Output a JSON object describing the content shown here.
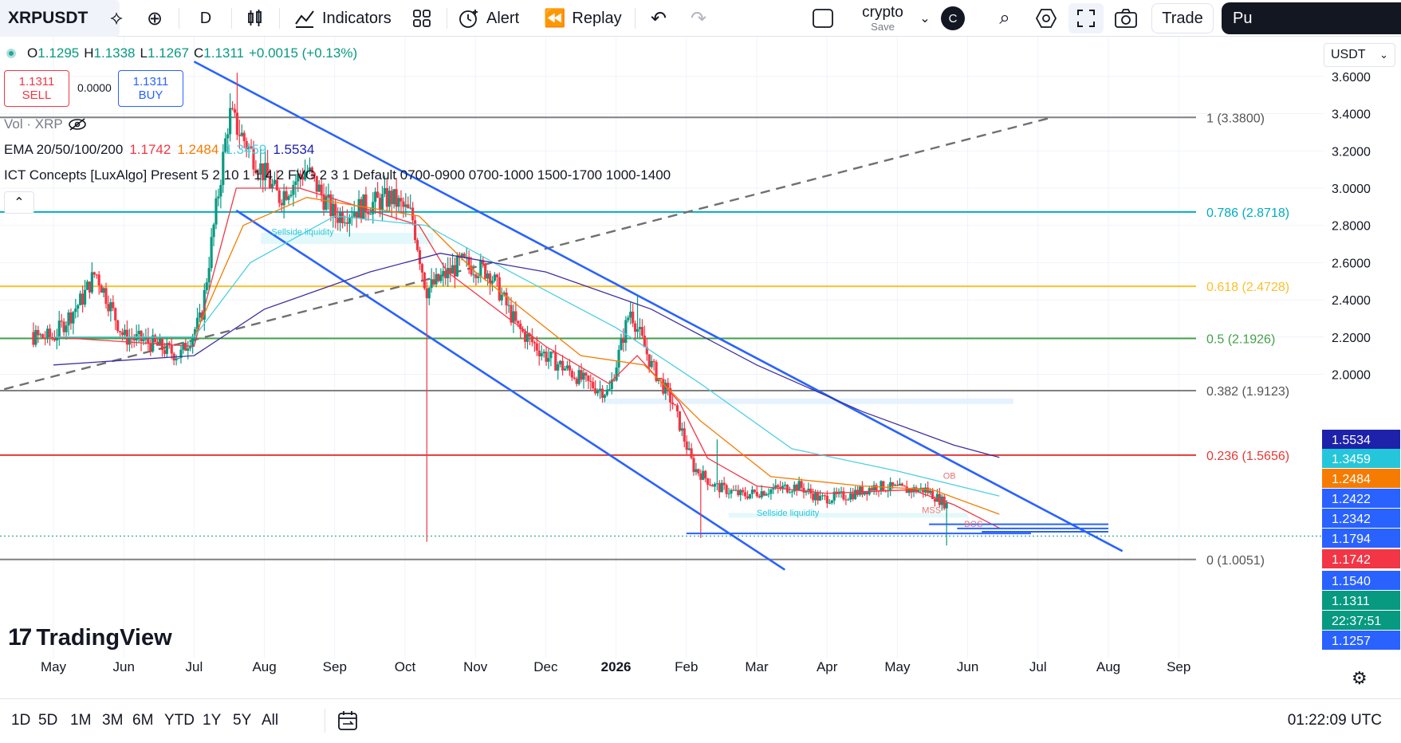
{
  "toolbar": {
    "symbol": "XRPUSDT",
    "interval": "D",
    "indicators_label": "Indicators",
    "alert_label": "Alert",
    "replay_label": "Replay",
    "layout_name": "crypto",
    "layout_save": "Save",
    "avatar_letter": "C",
    "trade_label": "Trade",
    "publish_label": "Pu",
    "icons": [
      "diamond-plus-icon",
      "plus-circle-icon",
      "candles-icon",
      "indicators-icon",
      "templates-grid-icon",
      "alert-clock-icon",
      "replay-icon",
      "undo-icon",
      "redo-icon",
      "layout-square-icon",
      "chevron-down-icon",
      "quick-search-icon",
      "settings-hex-icon",
      "fullscreen-icon",
      "camera-icon"
    ]
  },
  "legend": {
    "o_label": "O",
    "o": "1.1295",
    "h_label": "H",
    "h": "1.1338",
    "l_label": "L",
    "l": "1.1267",
    "c_label": "C",
    "c": "1.1311",
    "change": "+0.0015 (+0.13%)",
    "sell_price": "1.1311",
    "sell_label": "SELL",
    "spread": "0.0000",
    "buy_price": "1.1311",
    "buy_label": "BUY",
    "vol": "Vol · XRP",
    "ema_label": "EMA 20/50/100/200",
    "ema20": "1.1742",
    "ema50": "1.2484",
    "ema100": "1.3459",
    "ema200": "1.5534",
    "ict": "ICT Concepts [LuxAlgo] Present 5 2 10 1 1 4 2 FVG 2 3 1 Default 0700-0900 0700-1000 1500-1700 1000-1400",
    "currency": "USDT"
  },
  "logo_text": "TradingView",
  "bottombar": {
    "timeframes": [
      "1D",
      "5D",
      "1M",
      "3M",
      "6M",
      "YTD",
      "1Y",
      "5Y",
      "All"
    ],
    "clock": "01:22:09 UTC"
  },
  "colors": {
    "up": "#089981",
    "down": "#f23645",
    "ema20": "#f23645",
    "ema50": "#f57c00",
    "ema100": "#4dd0e1",
    "ema200": "#3f2fa0",
    "channel": "#2962ff",
    "fib_1": "#808080",
    "fib_786": "#00acc1",
    "fib_618": "#fbc02d",
    "fib_5": "#43a047",
    "fib_382": "#808080",
    "fib_236": "#e53935",
    "fib_0": "#808080"
  },
  "chart_data": {
    "type": "candlestick",
    "symbol": "XRPUSDT",
    "timeframe": "D",
    "y_axis": {
      "scale": "linear",
      "range": [
        0.95,
        3.68
      ],
      "ticks": [
        "3.6000",
        "3.4000",
        "3.2000",
        "3.0000",
        "2.8000",
        "2.6000",
        "2.4000",
        "2.2000",
        "2.0000"
      ],
      "tick_values": [
        3.6,
        3.4,
        3.2,
        3.0,
        2.8,
        2.6,
        2.4,
        2.2,
        2.0
      ]
    },
    "x_axis": {
      "ticks": [
        "May",
        "Jun",
        "Jul",
        "Aug",
        "Sep",
        "Oct",
        "Nov",
        "Dec",
        "2026",
        "Feb",
        "Mar",
        "Apr",
        "May",
        "Jun",
        "Jul",
        "Aug",
        "Sep"
      ],
      "tick_index": [
        0,
        1,
        2,
        3,
        4,
        5,
        6,
        7,
        8,
        9,
        10,
        11,
        12,
        13,
        14,
        15,
        16
      ]
    },
    "price_path_monthly": [
      {
        "m": 0.0,
        "v": 2.2
      },
      {
        "m": 0.4,
        "v": 2.4
      },
      {
        "m": 0.6,
        "v": 2.55
      },
      {
        "m": 1.0,
        "v": 2.2
      },
      {
        "m": 1.3,
        "v": 2.18
      },
      {
        "m": 1.8,
        "v": 2.1
      },
      {
        "m": 2.1,
        "v": 2.3
      },
      {
        "m": 2.5,
        "v": 3.4
      },
      {
        "m": 2.8,
        "v": 3.2
      },
      {
        "m": 3.2,
        "v": 2.95
      },
      {
        "m": 3.6,
        "v": 3.1
      },
      {
        "m": 4.0,
        "v": 2.85
      },
      {
        "m": 4.4,
        "v": 2.9
      },
      {
        "m": 4.8,
        "v": 2.95
      },
      {
        "m": 5.1,
        "v": 2.85
      },
      {
        "m": 5.3,
        "v": 2.45
      },
      {
        "m": 5.8,
        "v": 2.6
      },
      {
        "m": 6.2,
        "v": 2.55
      },
      {
        "m": 6.6,
        "v": 2.25
      },
      {
        "m": 7.0,
        "v": 2.1
      },
      {
        "m": 7.6,
        "v": 1.95
      },
      {
        "m": 7.9,
        "v": 1.9
      },
      {
        "m": 8.2,
        "v": 2.35
      },
      {
        "m": 8.5,
        "v": 2.05
      },
      {
        "m": 8.8,
        "v": 1.85
      },
      {
        "m": 9.1,
        "v": 1.5
      },
      {
        "m": 9.4,
        "v": 1.4
      },
      {
        "m": 9.8,
        "v": 1.35
      },
      {
        "m": 10.2,
        "v": 1.38
      },
      {
        "m": 10.6,
        "v": 1.4
      },
      {
        "m": 10.9,
        "v": 1.33
      },
      {
        "m": 11.3,
        "v": 1.35
      },
      {
        "m": 11.7,
        "v": 1.4
      },
      {
        "m": 12.1,
        "v": 1.38
      },
      {
        "m": 12.4,
        "v": 1.38
      },
      {
        "m": 12.7,
        "v": 1.3
      },
      {
        "m": 13.0,
        "v": 1.15
      },
      {
        "m": 13.2,
        "v": 1.12
      },
      {
        "m": 13.45,
        "v": 1.13
      }
    ],
    "ema_paths": {
      "ema20": [
        [
          0.0,
          2.2
        ],
        [
          2.0,
          2.15
        ],
        [
          2.6,
          3.0
        ],
        [
          3.5,
          3.0
        ],
        [
          5.2,
          2.8
        ],
        [
          5.6,
          2.55
        ],
        [
          7.0,
          2.15
        ],
        [
          7.9,
          1.95
        ],
        [
          8.3,
          2.1
        ],
        [
          8.9,
          1.85
        ],
        [
          9.3,
          1.55
        ],
        [
          10.0,
          1.4
        ],
        [
          11.0,
          1.36
        ],
        [
          12.2,
          1.38
        ],
        [
          12.8,
          1.3
        ],
        [
          13.45,
          1.1742
        ]
      ],
      "ema50": [
        [
          0.0,
          2.2
        ],
        [
          2.0,
          2.2
        ],
        [
          2.7,
          2.8
        ],
        [
          3.6,
          2.95
        ],
        [
          5.2,
          2.85
        ],
        [
          6.0,
          2.55
        ],
        [
          7.5,
          2.1
        ],
        [
          8.4,
          2.05
        ],
        [
          9.2,
          1.75
        ],
        [
          10.2,
          1.45
        ],
        [
          11.5,
          1.4
        ],
        [
          12.5,
          1.38
        ],
        [
          13.45,
          1.2484
        ]
      ],
      "ema100": [
        [
          0.0,
          2.2
        ],
        [
          2.0,
          2.2
        ],
        [
          2.8,
          2.6
        ],
        [
          4.0,
          2.85
        ],
        [
          5.3,
          2.8
        ],
        [
          6.5,
          2.55
        ],
        [
          8.0,
          2.25
        ],
        [
          9.2,
          1.95
        ],
        [
          10.5,
          1.6
        ],
        [
          12.0,
          1.48
        ],
        [
          13.45,
          1.3459
        ]
      ],
      "ema200": [
        [
          0.0,
          2.05
        ],
        [
          2.0,
          2.1
        ],
        [
          3.0,
          2.35
        ],
        [
          4.5,
          2.55
        ],
        [
          5.5,
          2.65
        ],
        [
          7.0,
          2.55
        ],
        [
          8.5,
          2.35
        ],
        [
          10.0,
          2.05
        ],
        [
          11.5,
          1.8
        ],
        [
          12.8,
          1.62
        ],
        [
          13.45,
          1.5534
        ]
      ]
    },
    "fib_levels": [
      {
        "label": "1 (3.3800)",
        "value": 3.38,
        "color": "#808080"
      },
      {
        "label": "0.786 (2.8718)",
        "value": 2.8718,
        "color": "#00acc1"
      },
      {
        "label": "0.618 (2.4728)",
        "value": 2.4728,
        "color": "#fbc02d"
      },
      {
        "label": "0.5 (2.1926)",
        "value": 2.1926,
        "color": "#43a047"
      },
      {
        "label": "0.382 (1.9123)",
        "value": 1.9123,
        "color": "#808080"
      },
      {
        "label": "0.236 (1.5656)",
        "value": 1.5656,
        "color": "#e53935"
      },
      {
        "label": "0 (1.0051)",
        "value": 1.0051,
        "color": "#808080"
      }
    ],
    "price_labels": [
      {
        "text": "1.5534",
        "value": 1.5534,
        "bg": "#1e22aa",
        "fg": "#ffffff"
      },
      {
        "text": "1.3459",
        "value": 1.3459,
        "bg": "#26c6da",
        "fg": "#ffffff"
      },
      {
        "text": "1.2484",
        "value": 1.2484,
        "bg": "#f57c00",
        "fg": "#ffffff"
      },
      {
        "text": "1.2422",
        "value": 1.2422,
        "bg": "#2962ff",
        "fg": "#ffffff"
      },
      {
        "text": "1.2342",
        "value": 1.2342,
        "bg": "#2962ff",
        "fg": "#ffffff"
      },
      {
        "text": "1.1794",
        "value": 1.1794,
        "bg": "#2962ff",
        "fg": "#ffffff"
      },
      {
        "text": "1.1742",
        "value": 1.1742,
        "bg": "#f23645",
        "fg": "#ffffff"
      },
      {
        "text": "1.1540",
        "value": 1.154,
        "bg": "#2962ff",
        "fg": "#ffffff"
      },
      {
        "text": "1.1311",
        "value": 1.1311,
        "bg": "#089981",
        "fg": "#ffffff"
      },
      {
        "text": "22:37:51",
        "value": 1.1311,
        "bg": "#089981",
        "fg": "#ffffff"
      },
      {
        "text": "1.1257",
        "value": 1.1257,
        "bg": "#2962ff",
        "fg": "#ffffff"
      }
    ],
    "annotations": [
      {
        "text": "Sellside liquidity",
        "m": 3.1,
        "value": 2.75
      },
      {
        "text": "Sellside liquidity",
        "m": 10.0,
        "value": 1.24
      },
      {
        "text": "OB",
        "m": 12.65,
        "value": 1.44
      },
      {
        "text": "MSS",
        "m": 12.35,
        "value": 1.255
      },
      {
        "text": "BOS",
        "m": 12.95,
        "value": 1.18
      }
    ],
    "channel_lines": [
      {
        "m1": 2.0,
        "v1": 3.68,
        "m2": 15.2,
        "v2": 1.05
      },
      {
        "m1": 2.6,
        "v1": 2.88,
        "m2": 10.4,
        "v2": 0.95
      }
    ],
    "trend_line": {
      "m1": -0.7,
      "v1": 1.92,
      "m2": 14.2,
      "v2": 3.38,
      "style": "dashed"
    },
    "horizontal_lines": [
      {
        "m1": 9.0,
        "m2": 13.9,
        "value": 1.145
      },
      {
        "m1": 12.45,
        "m2": 15.0,
        "value": 1.1945
      },
      {
        "m1": 12.85,
        "m2": 15.0,
        "value": 1.172
      },
      {
        "m1": 13.2,
        "m2": 15.0,
        "value": 1.154
      }
    ]
  }
}
